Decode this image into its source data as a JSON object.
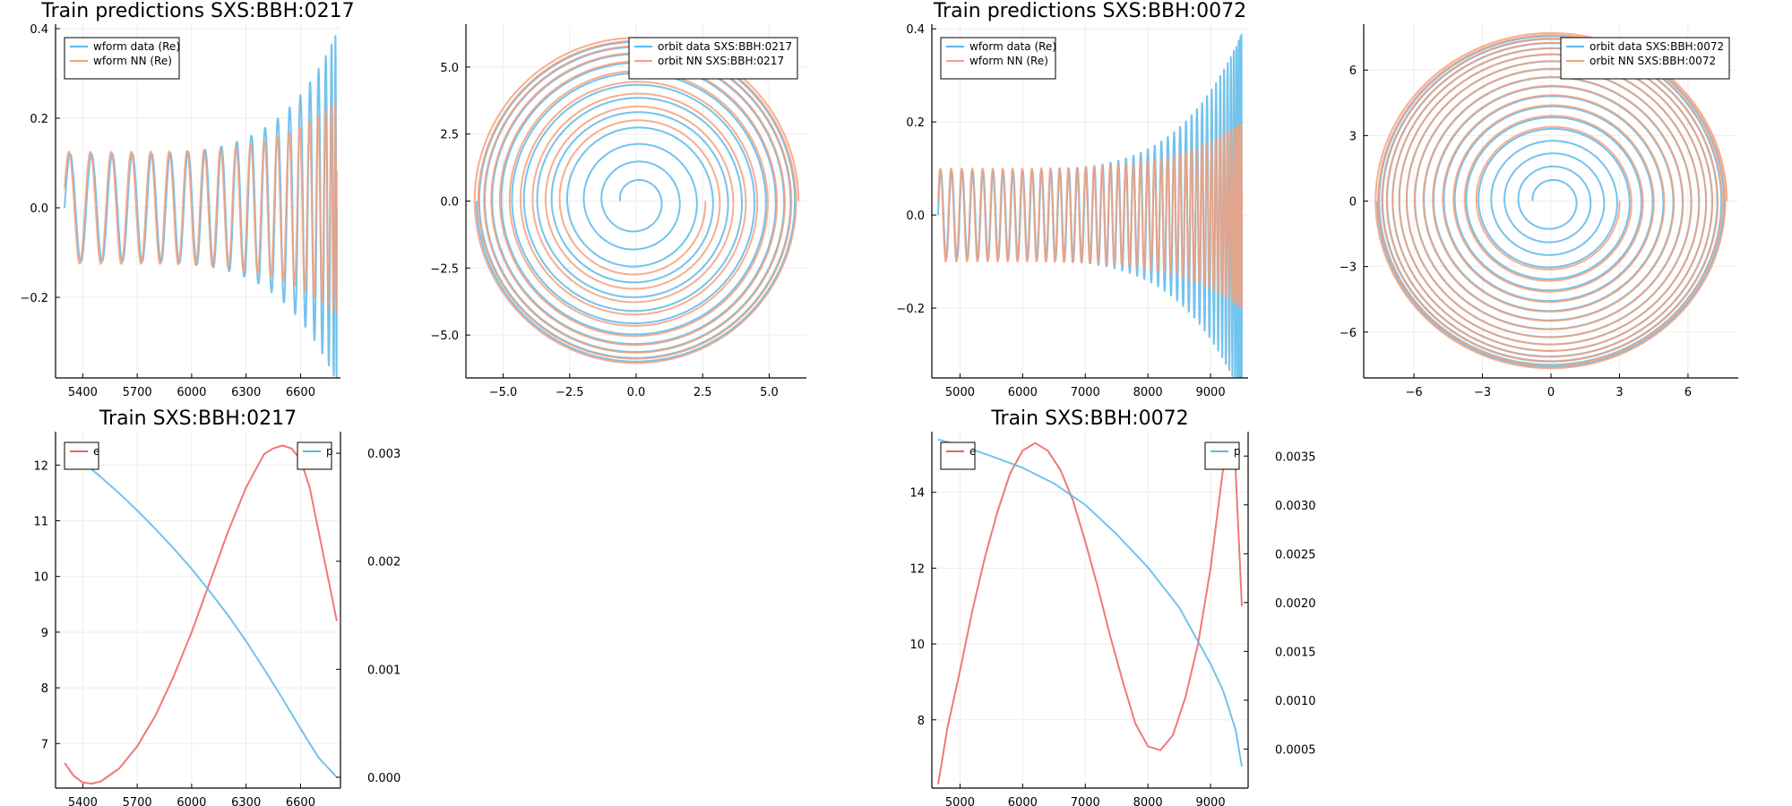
{
  "colors": {
    "blue": "#5ab8ea",
    "orange": "#f3a07d",
    "red": "#f06060",
    "grid": "#ededed",
    "axis": "#000000"
  },
  "chart_data": [
    {
      "id": "wf217",
      "type": "line",
      "title": "Train predictions SXS:BBH:0217",
      "xlim": [
        5250,
        6820
      ],
      "ylim": [
        -0.38,
        0.41
      ],
      "xticks": [
        5400,
        5700,
        6000,
        6300,
        6600
      ],
      "xtick_labels": [
        "5400",
        "5700",
        "6000",
        "6300",
        "6600"
      ],
      "yticks": [
        -0.2,
        0.0,
        0.2,
        0.4
      ],
      "ytick_labels": [
        "−0.2",
        "0.0",
        "0.2",
        "0.4"
      ],
      "legend_position": "top-left",
      "series": [
        {
          "name": "wform data (Re)",
          "color": "#5ab8ea",
          "kind": "wave",
          "x0": 5300,
          "x1": 6800,
          "amp0": 0.12,
          "amp1": 0.39,
          "cycles": 20,
          "phase": 0.0
        },
        {
          "name": "wform NN (Re)",
          "color": "#f3a07d",
          "kind": "wave",
          "x0": 5300,
          "x1": 6800,
          "amp0": 0.125,
          "amp1": 0.24,
          "cycles": 20,
          "phase": 0.35
        }
      ]
    },
    {
      "id": "orb217",
      "type": "line",
      "title": "",
      "xlim": [
        -6.4,
        6.4
      ],
      "ylim": [
        -6.6,
        6.6
      ],
      "xticks": [
        -5.0,
        -2.5,
        0.0,
        2.5,
        5.0
      ],
      "xtick_labels": [
        "−5.0",
        "−2.5",
        "0.0",
        "2.5",
        "5.0"
      ],
      "yticks": [
        -5.0,
        -2.5,
        0.0,
        2.5,
        5.0
      ],
      "ytick_labels": [
        "−5.0",
        "−2.5",
        "0.0",
        "2.5",
        "5.0"
      ],
      "legend_position": "top-right",
      "series": [
        {
          "name": "orbit data SXS:BBH:0217",
          "color": "#5ab8ea",
          "kind": "spiral",
          "r0": 6.0,
          "r1": 0.6,
          "turns": 12,
          "phase": 3.1416
        },
        {
          "name": "orbit NN SXS:BBH:0217",
          "color": "#f3a07d",
          "kind": "spiral",
          "r0": 6.1,
          "r1": 2.6,
          "turns": 10,
          "phase": 0.0
        }
      ]
    },
    {
      "id": "wf072",
      "type": "line",
      "title": "Train predictions SXS:BBH:0072",
      "xlim": [
        4550,
        9600
      ],
      "ylim": [
        -0.35,
        0.41
      ],
      "xticks": [
        5000,
        6000,
        7000,
        8000,
        9000
      ],
      "xtick_labels": [
        "5000",
        "6000",
        "7000",
        "8000",
        "9000"
      ],
      "yticks": [
        -0.2,
        0.0,
        0.2,
        0.4
      ],
      "ytick_labels": [
        "−0.2",
        "0.0",
        "0.2",
        "0.4"
      ],
      "legend_position": "top-left",
      "series": [
        {
          "name": "wform data (Re)",
          "color": "#5ab8ea",
          "kind": "wave",
          "x0": 4650,
          "x1": 9500,
          "amp0": 0.095,
          "amp1": 0.39,
          "cycles": 45,
          "phase": 0.0
        },
        {
          "name": "wform NN (Re)",
          "color": "#f3a07d",
          "kind": "wave",
          "x0": 4650,
          "x1": 9500,
          "amp0": 0.1,
          "amp1": 0.2,
          "cycles": 45,
          "phase": 0.3
        }
      ]
    },
    {
      "id": "orb072",
      "type": "line",
      "title": "",
      "xlim": [
        -8.2,
        8.2
      ],
      "ylim": [
        -8.1,
        8.1
      ],
      "xticks": [
        -6,
        -3,
        0,
        3,
        6
      ],
      "xtick_labels": [
        "−6",
        "−3",
        "0",
        "3",
        "6"
      ],
      "yticks": [
        -6,
        -3,
        0,
        3,
        6
      ],
      "ytick_labels": [
        "−6",
        "−3",
        "0",
        "3",
        "6"
      ],
      "legend_position": "top-right",
      "series": [
        {
          "name": "orbit data SXS:BBH:0072",
          "color": "#5ab8ea",
          "kind": "spiral",
          "r0": 7.6,
          "r1": 0.8,
          "turns": 17,
          "phase": 3.1416
        },
        {
          "name": "orbit NN SXS:BBH:0072",
          "color": "#f3a07d",
          "kind": "spiral",
          "r0": 7.7,
          "r1": 3.0,
          "turns": 14,
          "phase": 0.0
        }
      ]
    },
    {
      "id": "ep217",
      "type": "line",
      "title": "Train SXS:BBH:0217",
      "xlim": [
        5250,
        6820
      ],
      "ylim": [
        6.2,
        12.6
      ],
      "xticks": [
        5400,
        5700,
        6000,
        6300,
        6600
      ],
      "xtick_labels": [
        "5400",
        "5700",
        "6000",
        "6300",
        "6600"
      ],
      "yticks": [
        7,
        8,
        9,
        10,
        11,
        12
      ],
      "ytick_labels": [
        "7",
        "8",
        "9",
        "10",
        "11",
        "12"
      ],
      "y2lim": [
        -0.0001,
        0.0032
      ],
      "y2ticks": [
        0.0,
        0.001,
        0.002,
        0.003
      ],
      "y2tick_labels": [
        "0.000",
        "0.001",
        "0.002",
        "0.003"
      ],
      "series": [
        {
          "name": "e",
          "color": "#f06060",
          "axis": "left",
          "x": [
            5300,
            5350,
            5400,
            5450,
            5500,
            5600,
            5700,
            5800,
            5900,
            6000,
            6100,
            6200,
            6300,
            6400,
            6450,
            6500,
            6550,
            6600,
            6650,
            6700,
            6750,
            6800
          ],
          "y": [
            6.65,
            6.42,
            6.3,
            6.28,
            6.32,
            6.55,
            6.95,
            7.5,
            8.2,
            9.0,
            9.9,
            10.8,
            11.6,
            12.2,
            12.3,
            12.35,
            12.3,
            12.1,
            11.6,
            10.8,
            10.0,
            9.2
          ]
        },
        {
          "name": "p",
          "color": "#5ab8ea",
          "axis": "right",
          "x": [
            5300,
            5400,
            5500,
            5600,
            5700,
            5800,
            5900,
            6000,
            6100,
            6200,
            6300,
            6400,
            6500,
            6600,
            6700,
            6800
          ],
          "y": [
            0.00305,
            0.00292,
            0.00278,
            0.00263,
            0.00247,
            0.0023,
            0.00212,
            0.00193,
            0.00172,
            0.0015,
            0.00126,
            0.001,
            0.00073,
            0.00045,
            0.00018,
            0.0
          ]
        }
      ]
    },
    {
      "id": "ep072",
      "type": "line",
      "title": "Train SXS:BBH:0072",
      "xlim": [
        4550,
        9600
      ],
      "ylim": [
        6.2,
        15.6
      ],
      "xticks": [
        5000,
        6000,
        7000,
        8000,
        9000
      ],
      "xtick_labels": [
        "5000",
        "6000",
        "7000",
        "8000",
        "9000"
      ],
      "yticks": [
        8,
        10,
        12,
        14
      ],
      "ytick_labels": [
        "8",
        "10",
        "12",
        "14"
      ],
      "y2lim": [
        0.0001,
        0.00375
      ],
      "y2ticks": [
        0.0005,
        0.001,
        0.0015,
        0.002,
        0.0025,
        0.003,
        0.0035
      ],
      "y2tick_labels": [
        "0.0005",
        "0.0010",
        "0.0015",
        "0.0020",
        "0.0025",
        "0.0030",
        "0.0035"
      ],
      "series": [
        {
          "name": "e",
          "color": "#f06060",
          "axis": "left",
          "x": [
            4650,
            4800,
            5000,
            5200,
            5400,
            5600,
            5800,
            6000,
            6200,
            6400,
            6600,
            6800,
            7000,
            7200,
            7400,
            7600,
            7800,
            8000,
            8200,
            8400,
            8600,
            8800,
            9000,
            9100,
            9200,
            9300,
            9400,
            9500
          ],
          "y": [
            6.3,
            7.8,
            9.3,
            10.9,
            12.3,
            13.5,
            14.5,
            15.1,
            15.3,
            15.1,
            14.6,
            13.8,
            12.7,
            11.5,
            10.2,
            9.0,
            7.9,
            7.3,
            7.2,
            7.6,
            8.6,
            10.0,
            12.0,
            13.3,
            14.6,
            15.3,
            14.6,
            11.0
          ]
        },
        {
          "name": "p",
          "color": "#5ab8ea",
          "axis": "right",
          "x": [
            4650,
            5000,
            5500,
            6000,
            6500,
            7000,
            7500,
            8000,
            8500,
            9000,
            9200,
            9400,
            9500
          ],
          "y": [
            0.00367,
            0.00361,
            0.0035,
            0.00338,
            0.00322,
            0.003,
            0.0027,
            0.00236,
            0.00195,
            0.00137,
            0.0011,
            0.0007,
            0.00032
          ]
        }
      ]
    }
  ]
}
